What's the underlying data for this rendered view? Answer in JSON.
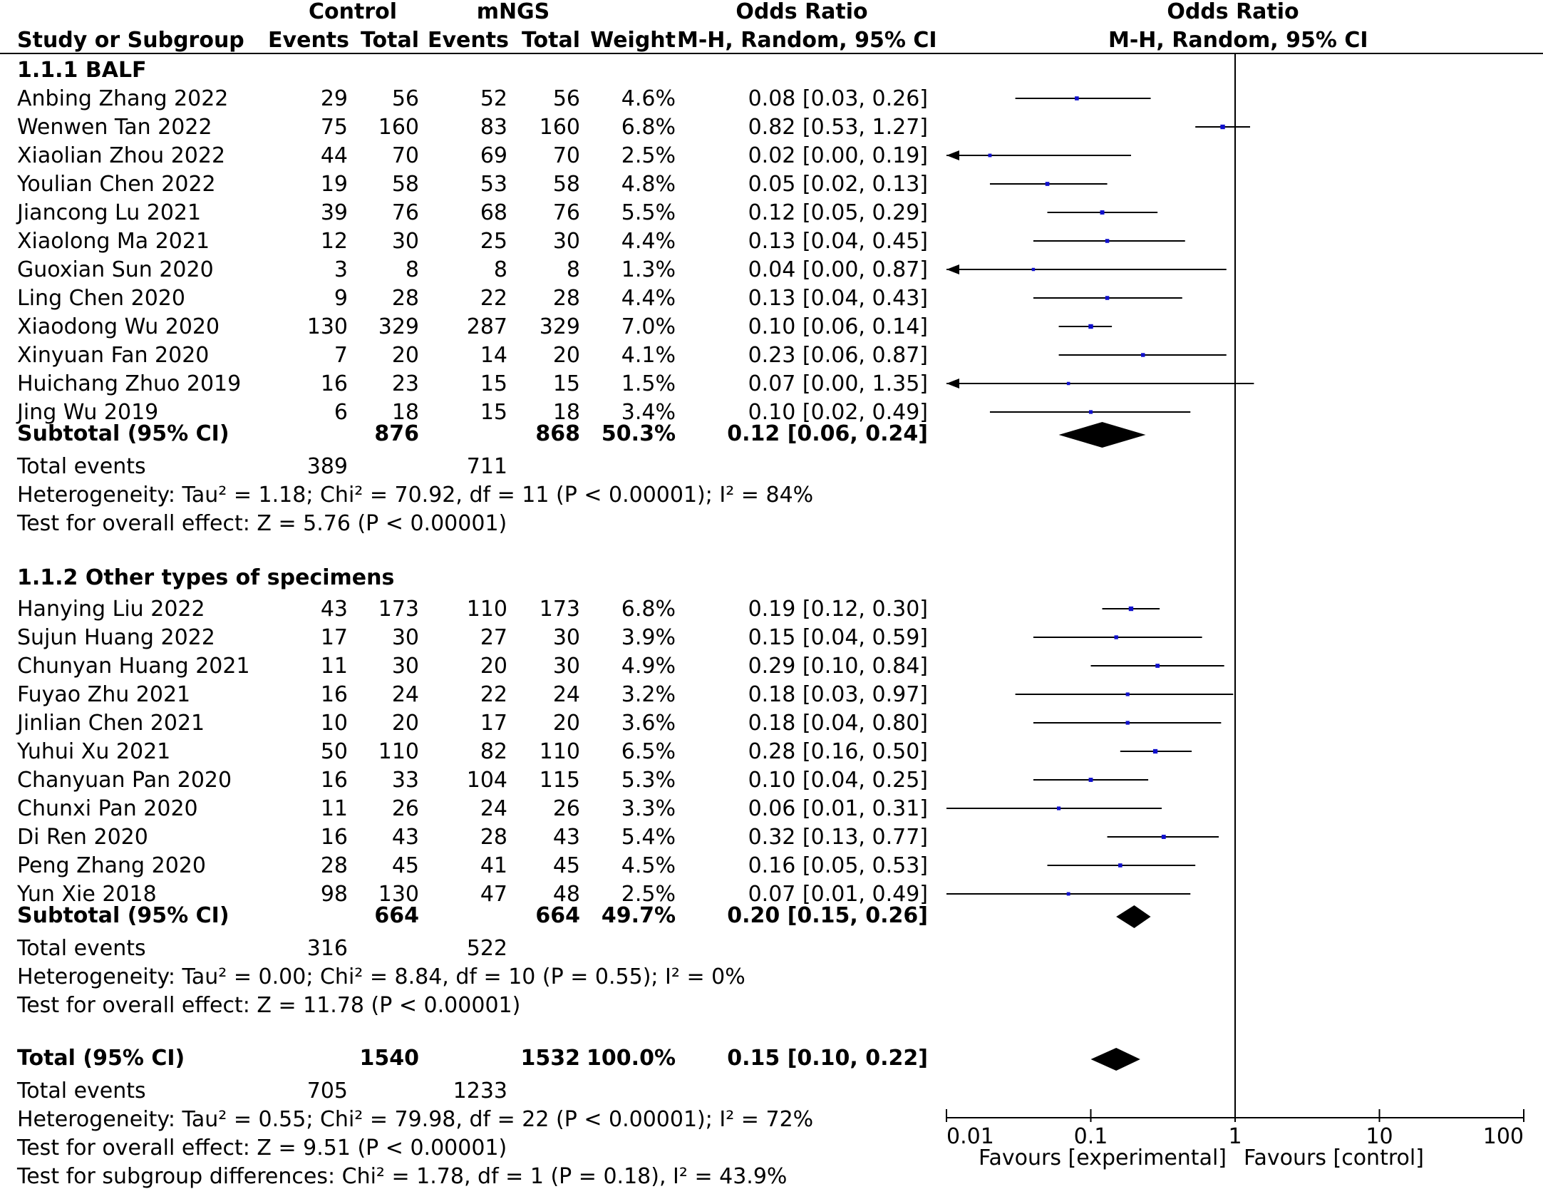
{
  "header": {
    "control_group": "Control",
    "mngs_group": "mNGS",
    "or_title_left": "Odds Ratio",
    "or_title_right": "Odds Ratio",
    "study_col": "Study or Subgroup",
    "events_col": "Events",
    "total_col": "Total",
    "weight_col": "Weight",
    "method_left": "M-H, Random, 95% CI",
    "method_right": "M-H, Random, 95% CI"
  },
  "subgroups": [
    {
      "title": "1.1.1 BALF",
      "studies": [
        {
          "name": "Anbing Zhang 2022",
          "c_events": "29",
          "c_total": "56",
          "m_events": "52",
          "m_total": "56",
          "weight": "4.6%",
          "ci_text": "0.08 [0.03, 0.26]"
        },
        {
          "name": "Wenwen Tan 2022",
          "c_events": "75",
          "c_total": "160",
          "m_events": "83",
          "m_total": "160",
          "weight": "6.8%",
          "ci_text": "0.82 [0.53, 1.27]"
        },
        {
          "name": "Xiaolian Zhou 2022",
          "c_events": "44",
          "c_total": "70",
          "m_events": "69",
          "m_total": "70",
          "weight": "2.5%",
          "ci_text": "0.02 [0.00, 0.19]"
        },
        {
          "name": "Youlian Chen 2022",
          "c_events": "19",
          "c_total": "58",
          "m_events": "53",
          "m_total": "58",
          "weight": "4.8%",
          "ci_text": "0.05 [0.02, 0.13]"
        },
        {
          "name": "Jiancong Lu 2021",
          "c_events": "39",
          "c_total": "76",
          "m_events": "68",
          "m_total": "76",
          "weight": "5.5%",
          "ci_text": "0.12 [0.05, 0.29]"
        },
        {
          "name": "Xiaolong Ma 2021",
          "c_events": "12",
          "c_total": "30",
          "m_events": "25",
          "m_total": "30",
          "weight": "4.4%",
          "ci_text": "0.13 [0.04, 0.45]"
        },
        {
          "name": "Guoxian Sun 2020",
          "c_events": "3",
          "c_total": "8",
          "m_events": "8",
          "m_total": "8",
          "weight": "1.3%",
          "ci_text": "0.04 [0.00, 0.87]"
        },
        {
          "name": "Ling Chen 2020",
          "c_events": "9",
          "c_total": "28",
          "m_events": "22",
          "m_total": "28",
          "weight": "4.4%",
          "ci_text": "0.13 [0.04, 0.43]"
        },
        {
          "name": "Xiaodong Wu 2020",
          "c_events": "130",
          "c_total": "329",
          "m_events": "287",
          "m_total": "329",
          "weight": "7.0%",
          "ci_text": "0.10 [0.06, 0.14]"
        },
        {
          "name": "Xinyuan Fan 2020",
          "c_events": "7",
          "c_total": "20",
          "m_events": "14",
          "m_total": "20",
          "weight": "4.1%",
          "ci_text": "0.23 [0.06, 0.87]"
        },
        {
          "name": "Huichang Zhuo 2019",
          "c_events": "16",
          "c_total": "23",
          "m_events": "15",
          "m_total": "15",
          "weight": "1.5%",
          "ci_text": "0.07 [0.00, 1.35]"
        },
        {
          "name": "Jing Wu 2019",
          "c_events": "6",
          "c_total": "18",
          "m_events": "15",
          "m_total": "18",
          "weight": "3.4%",
          "ci_text": "0.10 [0.02, 0.49]"
        }
      ],
      "subtotal": {
        "label": "Subtotal (95% CI)",
        "c_total": "876",
        "m_total": "868",
        "weight": "50.3%",
        "ci_text": "0.12 [0.06, 0.24]"
      },
      "total_events": {
        "label": "Total events",
        "c": "389",
        "m": "711"
      },
      "heterogeneity": "Heterogeneity: Tau² = 1.18; Chi² = 70.92, df = 11 (P < 0.00001); I² = 84%",
      "overall_effect": "Test for overall effect: Z = 5.76 (P < 0.00001)"
    },
    {
      "title": "1.1.2 Other types of specimens",
      "studies": [
        {
          "name": "Hanying Liu 2022",
          "c_events": "43",
          "c_total": "173",
          "m_events": "110",
          "m_total": "173",
          "weight": "6.8%",
          "ci_text": "0.19 [0.12, 0.30]"
        },
        {
          "name": "Sujun Huang 2022",
          "c_events": "17",
          "c_total": "30",
          "m_events": "27",
          "m_total": "30",
          "weight": "3.9%",
          "ci_text": "0.15 [0.04, 0.59]"
        },
        {
          "name": "Chunyan Huang 2021",
          "c_events": "11",
          "c_total": "30",
          "m_events": "20",
          "m_total": "30",
          "weight": "4.9%",
          "ci_text": "0.29 [0.10, 0.84]"
        },
        {
          "name": "Fuyao Zhu 2021",
          "c_events": "16",
          "c_total": "24",
          "m_events": "22",
          "m_total": "24",
          "weight": "3.2%",
          "ci_text": "0.18 [0.03, 0.97]"
        },
        {
          "name": "Jinlian Chen 2021",
          "c_events": "10",
          "c_total": "20",
          "m_events": "17",
          "m_total": "20",
          "weight": "3.6%",
          "ci_text": "0.18 [0.04, 0.80]"
        },
        {
          "name": "Yuhui Xu 2021",
          "c_events": "50",
          "c_total": "110",
          "m_events": "82",
          "m_total": "110",
          "weight": "6.5%",
          "ci_text": "0.28 [0.16, 0.50]"
        },
        {
          "name": "Chanyuan Pan 2020",
          "c_events": "16",
          "c_total": "33",
          "m_events": "104",
          "m_total": "115",
          "weight": "5.3%",
          "ci_text": "0.10 [0.04, 0.25]"
        },
        {
          "name": "Chunxi Pan 2020",
          "c_events": "11",
          "c_total": "26",
          "m_events": "24",
          "m_total": "26",
          "weight": "3.3%",
          "ci_text": "0.06 [0.01, 0.31]"
        },
        {
          "name": "Di Ren 2020",
          "c_events": "16",
          "c_total": "43",
          "m_events": "28",
          "m_total": "43",
          "weight": "5.4%",
          "ci_text": "0.32 [0.13, 0.77]"
        },
        {
          "name": "Peng Zhang 2020",
          "c_events": "28",
          "c_total": "45",
          "m_events": "41",
          "m_total": "45",
          "weight": "4.5%",
          "ci_text": "0.16 [0.05, 0.53]"
        },
        {
          "name": "Yun Xie 2018",
          "c_events": "98",
          "c_total": "130",
          "m_events": "47",
          "m_total": "48",
          "weight": "2.5%",
          "ci_text": "0.07 [0.01, 0.49]"
        }
      ],
      "subtotal": {
        "label": "Subtotal (95% CI)",
        "c_total": "664",
        "m_total": "664",
        "weight": "49.7%",
        "ci_text": "0.20 [0.15, 0.26]"
      },
      "total_events": {
        "label": "Total events",
        "c": "316",
        "m": "522"
      },
      "heterogeneity": "Heterogeneity: Tau² = 0.00; Chi² = 8.84, df = 10 (P = 0.55); I² = 0%",
      "overall_effect": "Test for overall effect: Z = 11.78 (P < 0.00001)"
    }
  ],
  "overall": {
    "label": "Total (95% CI)",
    "c_total": "1540",
    "m_total": "1532",
    "weight": "100.0%",
    "ci_text": "0.15 [0.10, 0.22]",
    "total_events": {
      "label": "Total events",
      "c": "705",
      "m": "1233"
    },
    "heterogeneity": "Heterogeneity: Tau² = 0.55; Chi² = 79.98, df = 22 (P < 0.00001); I² = 72%",
    "overall_effect": "Test for overall effect: Z = 9.51 (P < 0.00001)",
    "subgroup_diff": "Test for subgroup differences: Chi² = 1.78, df = 1 (P = 0.18), I² = 43.9%"
  },
  "axis": {
    "tick_labels": [
      "0.01",
      "0.1",
      "1",
      "10",
      "100"
    ],
    "favours_left": "Favours [experimental]",
    "favours_right": "Favours [control]"
  },
  "colors": {
    "point": "#1010cc",
    "line": "#000000",
    "diamond": "#000000"
  },
  "chart_data": {
    "type": "forest",
    "title": "Odds Ratio M-H, Random, 95% CI",
    "xscale": "log",
    "xlim": [
      0.01,
      100
    ],
    "xticks": [
      0.01,
      0.1,
      1,
      10,
      100
    ],
    "reference_line": 1,
    "xlabel_left": "Favours [experimental]",
    "xlabel_right": "Favours [control]",
    "series": [
      {
        "name": "1.1.1 BALF",
        "studies": [
          {
            "study": "Anbing Zhang 2022",
            "or": 0.08,
            "lo": 0.03,
            "hi": 0.26,
            "weight": 4.6
          },
          {
            "study": "Wenwen Tan 2022",
            "or": 0.82,
            "lo": 0.53,
            "hi": 1.27,
            "weight": 6.8
          },
          {
            "study": "Xiaolian Zhou 2022",
            "or": 0.02,
            "lo": 0.0,
            "hi": 0.19,
            "weight": 2.5
          },
          {
            "study": "Youlian Chen 2022",
            "or": 0.05,
            "lo": 0.02,
            "hi": 0.13,
            "weight": 4.8
          },
          {
            "study": "Jiancong Lu 2021",
            "or": 0.12,
            "lo": 0.05,
            "hi": 0.29,
            "weight": 5.5
          },
          {
            "study": "Xiaolong Ma 2021",
            "or": 0.13,
            "lo": 0.04,
            "hi": 0.45,
            "weight": 4.4
          },
          {
            "study": "Guoxian Sun 2020",
            "or": 0.04,
            "lo": 0.0,
            "hi": 0.87,
            "weight": 1.3
          },
          {
            "study": "Ling Chen 2020",
            "or": 0.13,
            "lo": 0.04,
            "hi": 0.43,
            "weight": 4.4
          },
          {
            "study": "Xiaodong Wu 2020",
            "or": 0.1,
            "lo": 0.06,
            "hi": 0.14,
            "weight": 7.0
          },
          {
            "study": "Xinyuan Fan 2020",
            "or": 0.23,
            "lo": 0.06,
            "hi": 0.87,
            "weight": 4.1
          },
          {
            "study": "Huichang Zhuo 2019",
            "or": 0.07,
            "lo": 0.0,
            "hi": 1.35,
            "weight": 1.5
          },
          {
            "study": "Jing Wu 2019",
            "or": 0.1,
            "lo": 0.02,
            "hi": 0.49,
            "weight": 3.4
          }
        ],
        "subtotal": {
          "or": 0.12,
          "lo": 0.06,
          "hi": 0.24
        }
      },
      {
        "name": "1.1.2 Other types of specimens",
        "studies": [
          {
            "study": "Hanying Liu 2022",
            "or": 0.19,
            "lo": 0.12,
            "hi": 0.3,
            "weight": 6.8
          },
          {
            "study": "Sujun Huang 2022",
            "or": 0.15,
            "lo": 0.04,
            "hi": 0.59,
            "weight": 3.9
          },
          {
            "study": "Chunyan Huang 2021",
            "or": 0.29,
            "lo": 0.1,
            "hi": 0.84,
            "weight": 4.9
          },
          {
            "study": "Fuyao Zhu 2021",
            "or": 0.18,
            "lo": 0.03,
            "hi": 0.97,
            "weight": 3.2
          },
          {
            "study": "Jinlian Chen 2021",
            "or": 0.18,
            "lo": 0.04,
            "hi": 0.8,
            "weight": 3.6
          },
          {
            "study": "Yuhui Xu 2021",
            "or": 0.28,
            "lo": 0.16,
            "hi": 0.5,
            "weight": 6.5
          },
          {
            "study": "Chanyuan Pan 2020",
            "or": 0.1,
            "lo": 0.04,
            "hi": 0.25,
            "weight": 5.3
          },
          {
            "study": "Chunxi Pan 2020",
            "or": 0.06,
            "lo": 0.01,
            "hi": 0.31,
            "weight": 3.3
          },
          {
            "study": "Di Ren 2020",
            "or": 0.32,
            "lo": 0.13,
            "hi": 0.77,
            "weight": 5.4
          },
          {
            "study": "Peng Zhang 2020",
            "or": 0.16,
            "lo": 0.05,
            "hi": 0.53,
            "weight": 4.5
          },
          {
            "study": "Yun Xie 2018",
            "or": 0.07,
            "lo": 0.01,
            "hi": 0.49,
            "weight": 2.5
          }
        ],
        "subtotal": {
          "or": 0.2,
          "lo": 0.15,
          "hi": 0.26
        }
      }
    ],
    "overall": {
      "or": 0.15,
      "lo": 0.1,
      "hi": 0.22
    }
  }
}
